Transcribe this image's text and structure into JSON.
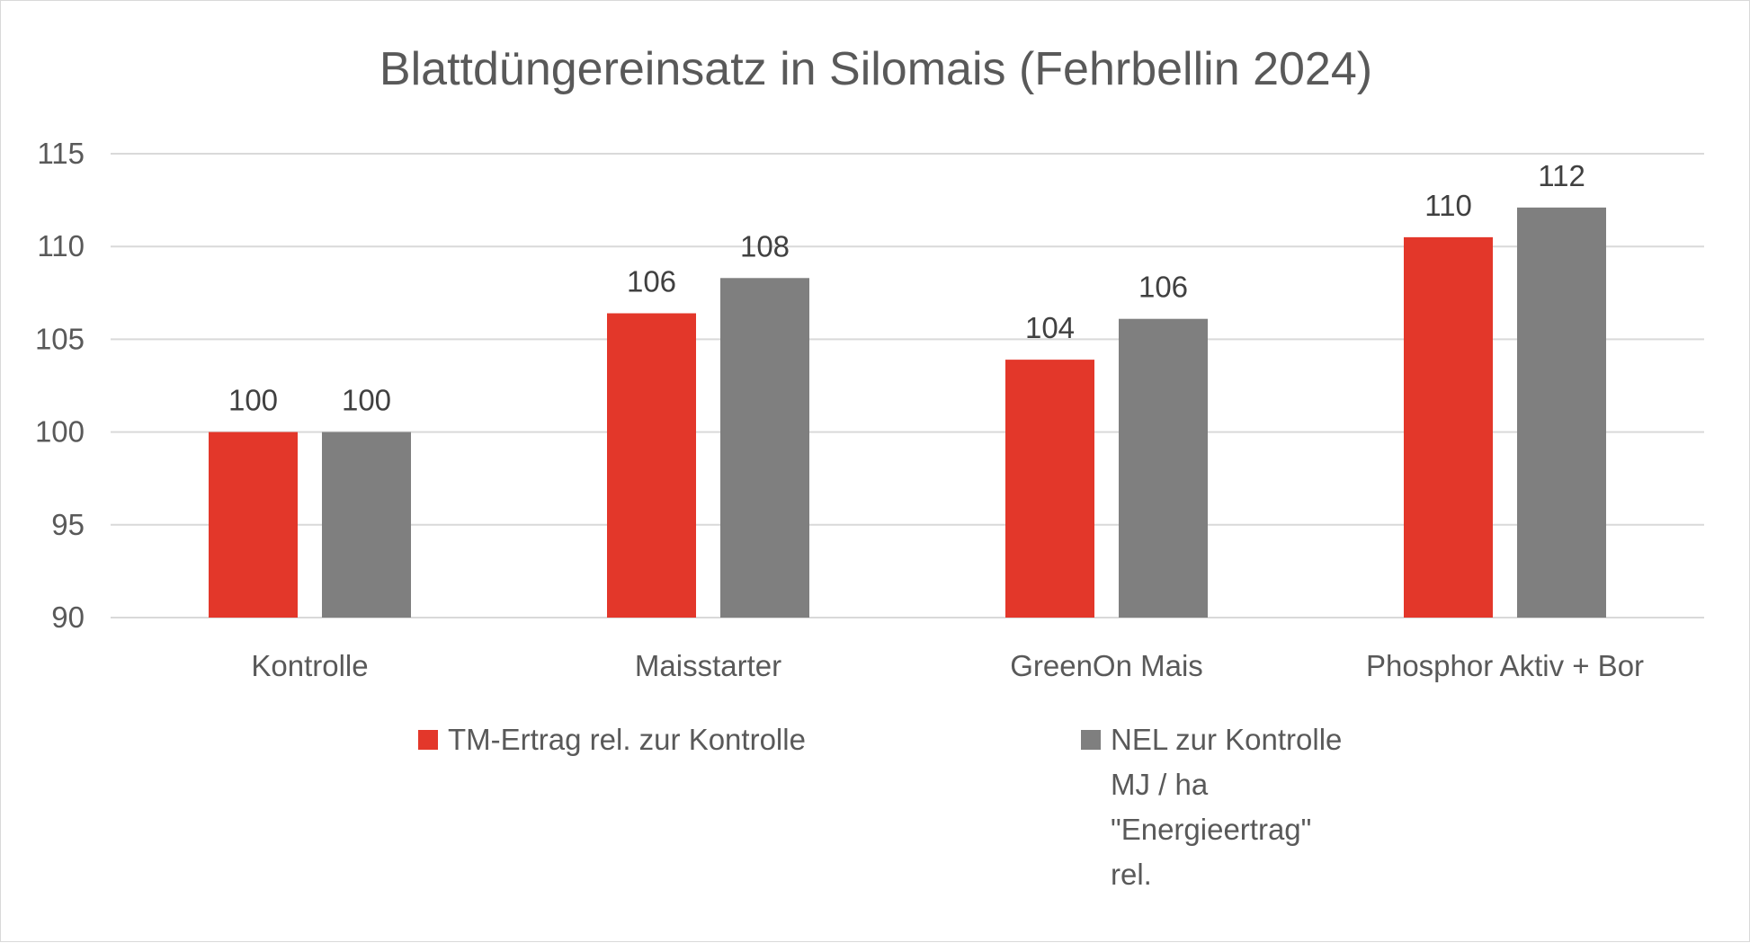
{
  "colors": {
    "series_red": "#e3372a",
    "series_gray": "#7f7f7f",
    "text": "#595959",
    "title": "#595959",
    "gridline": "#d9d9d9",
    "data_label": "#404040"
  },
  "chart_data": {
    "type": "bar",
    "title": "Blattdüngereinsatz in Silomais (Fehrbellin 2024)",
    "xlabel": "",
    "ylabel": "",
    "categories": [
      "Kontrolle",
      "Maisstarter",
      "GreenOn Mais",
      "Phosphor Aktiv + Bor"
    ],
    "series": [
      {
        "name": "TM-Ertrag rel. zur Kontrolle",
        "values": [
          100,
          106.4,
          103.9,
          110.5
        ],
        "labels": [
          "100",
          "106",
          "104",
          "110"
        ]
      },
      {
        "name": "NEL zur Kontrolle MJ / ha \"Energieertrag\" rel.",
        "legend_lines": [
          "NEL zur Kontrolle",
          "MJ / ha",
          "\"Energieertrag\"",
          "rel."
        ],
        "values": [
          100,
          108.3,
          106.1,
          112.1
        ],
        "labels": [
          "100",
          "108",
          "106",
          "112"
        ]
      }
    ],
    "ylim": [
      90,
      115
    ],
    "yticks": [
      90,
      95,
      100,
      105,
      110,
      115
    ],
    "grid": true,
    "legend": "bottom"
  }
}
